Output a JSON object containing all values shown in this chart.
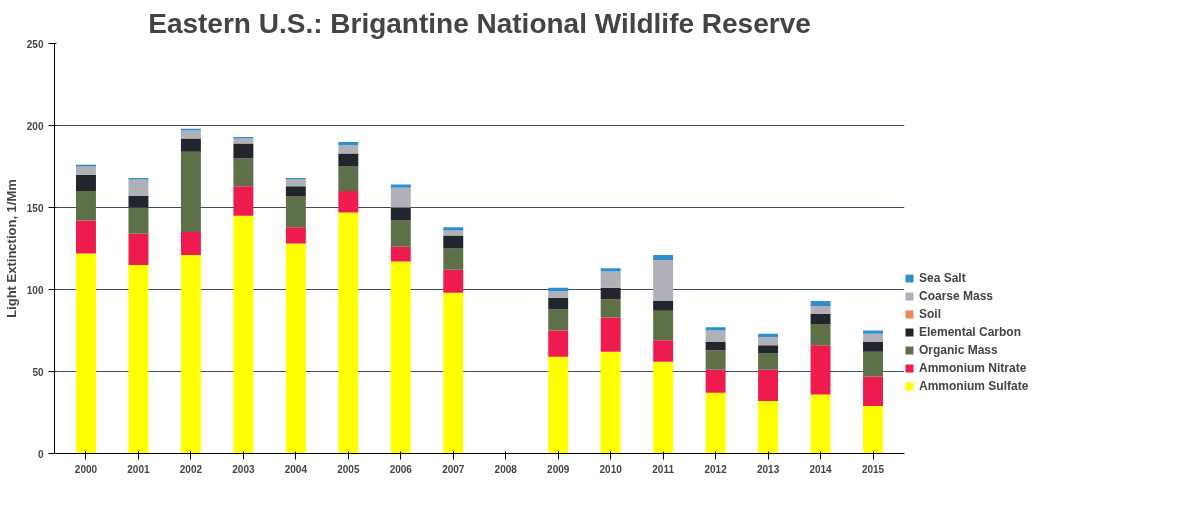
{
  "chart_data": {
    "type": "bar",
    "stacked": true,
    "title": "Eastern U.S.: Brigantine National Wildlife Reserve",
    "ylabel": "Light Extinction, 1/Mm",
    "categories": [
      "2000",
      "2001",
      "2002",
      "2003",
      "2004",
      "2005",
      "2006",
      "2007",
      "2008",
      "2009",
      "2010",
      "2011",
      "2012",
      "2013",
      "2014",
      "2015"
    ],
    "ylim": [
      0,
      250
    ],
    "yticks": [
      0,
      50,
      100,
      150,
      200,
      250
    ],
    "grid": "y",
    "legend": "right",
    "series": [
      {
        "name": "Ammonium Sulfate",
        "color": "#ffff00",
        "values": [
          122,
          115,
          121,
          145,
          128,
          147,
          117,
          98,
          null,
          59,
          62,
          56,
          37,
          32,
          36,
          29
        ]
      },
      {
        "name": "Ammonium Nitrate",
        "color": "#ee1c4e",
        "values": [
          20,
          19,
          14,
          18,
          10,
          13,
          9,
          14,
          null,
          16,
          21,
          13,
          14,
          19,
          30,
          18
        ]
      },
      {
        "name": "Organic Mass",
        "color": "#5e7048",
        "values": [
          18,
          16,
          49,
          17,
          19,
          15,
          16,
          13,
          null,
          13,
          11,
          18,
          12,
          10,
          13,
          15
        ]
      },
      {
        "name": "Elemental Carbon",
        "color": "#22262c",
        "values": [
          10,
          7,
          8,
          9,
          6,
          8,
          8,
          8,
          null,
          7,
          7,
          6,
          5,
          5,
          6,
          6
        ]
      },
      {
        "name": "Soil",
        "color": "#e8885a",
        "values": [
          null,
          null,
          null,
          null,
          null,
          null,
          null,
          null,
          null,
          null,
          null,
          null,
          null,
          null,
          null,
          null
        ]
      },
      {
        "name": "Coarse Mass",
        "color": "#b0b0b8",
        "values": [
          5,
          10,
          5,
          3,
          4,
          5,
          12,
          3,
          null,
          4,
          10,
          25,
          7,
          5,
          5,
          5
        ]
      },
      {
        "name": "Sea Salt",
        "color": "#2e8fd0",
        "values": [
          1,
          1,
          1,
          1,
          1,
          2,
          2,
          2,
          null,
          2,
          2,
          3,
          2,
          2,
          3,
          2
        ]
      }
    ]
  }
}
